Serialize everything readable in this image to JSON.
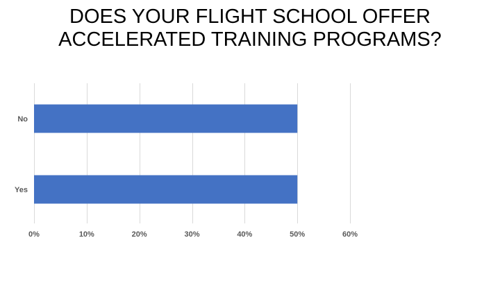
{
  "title_lines": [
    "DOES YOUR FLIGHT SCHOOL OFFER",
    "ACCELERATED TRAINING PROGRAMS?"
  ],
  "colors": {
    "bar": "#4472c4",
    "grid": "#d9d9d9",
    "axis_text": "#595959"
  },
  "chart_data": {
    "type": "bar",
    "orientation": "horizontal",
    "categories": [
      "No",
      "Yes"
    ],
    "values": [
      50,
      50
    ],
    "value_unit": "%",
    "xlim": [
      0,
      60
    ],
    "x_ticks": [
      "0%",
      "10%",
      "20%",
      "30%",
      "40%",
      "50%",
      "60%"
    ],
    "grid": true,
    "legend": "none"
  }
}
